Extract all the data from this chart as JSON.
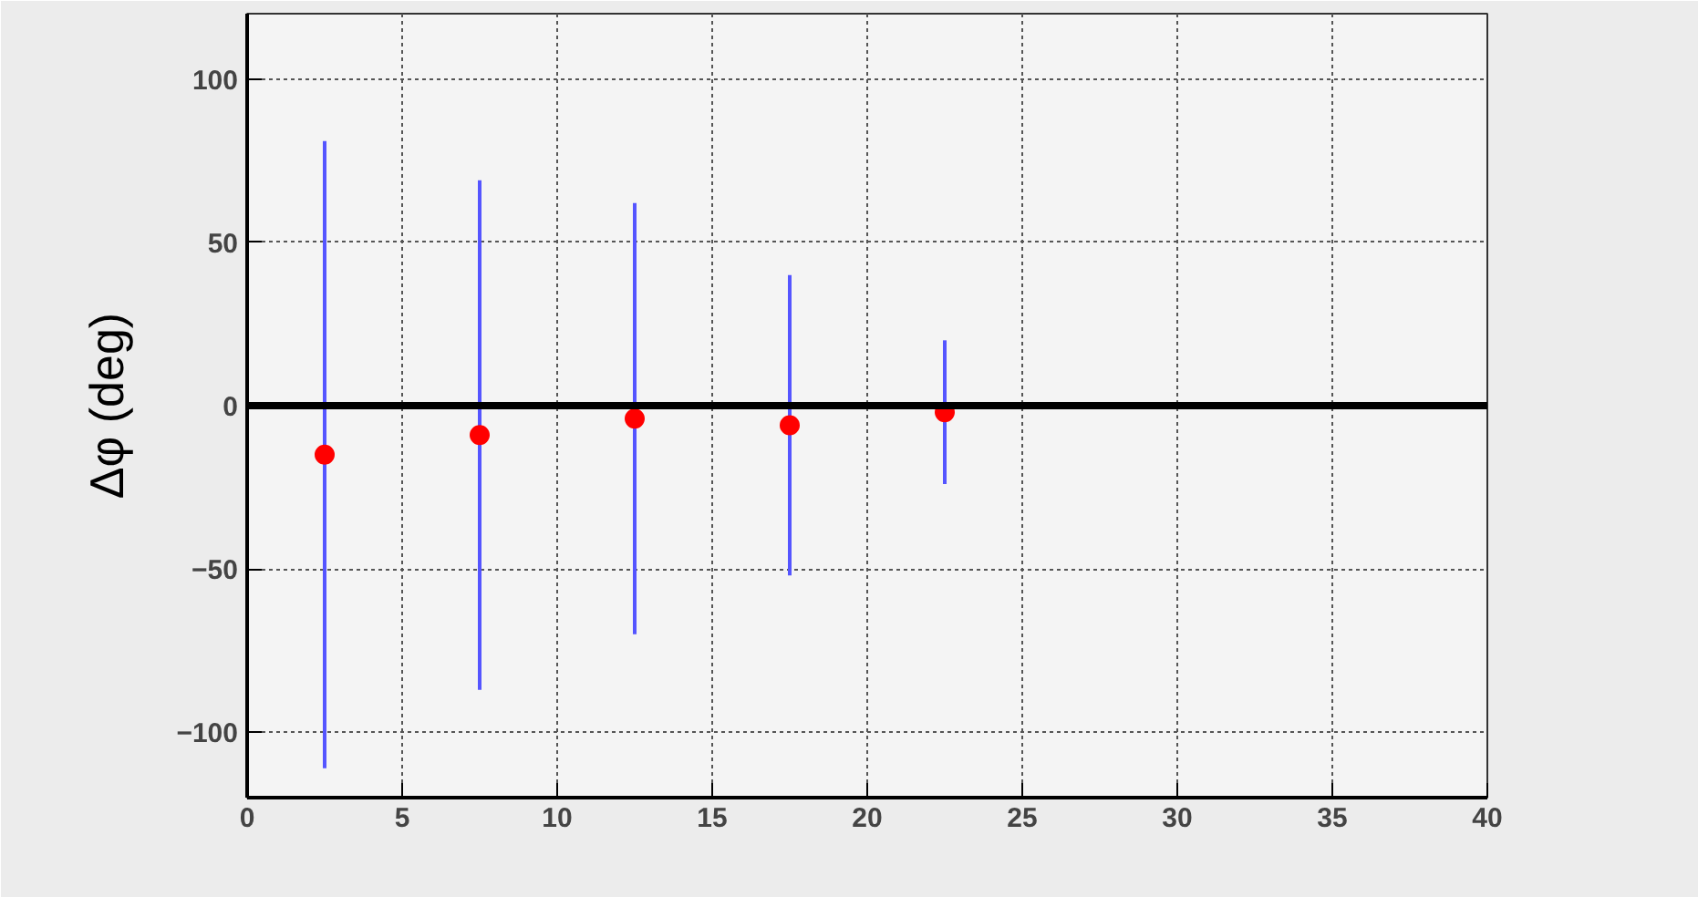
{
  "chart_data": {
    "type": "scatter",
    "ylabel": "Δφ (deg)",
    "x": [
      2.5,
      7.5,
      12.5,
      17.5,
      22.5
    ],
    "series": [
      {
        "color": "#ff0000",
        "values": [
          -15,
          -9,
          -4,
          -6,
          -2
        ],
        "errors": [
          96,
          78,
          66,
          46,
          22
        ]
      }
    ],
    "xlim": [
      0,
      40
    ],
    "xticks": [
      0,
      5,
      10,
      15,
      20,
      25,
      30,
      35,
      40
    ],
    "ylim": [
      -120,
      120
    ],
    "yticks": [
      -100,
      -50,
      0,
      50,
      100
    ],
    "ref_lines": [
      {
        "axis": "y",
        "value": 0,
        "color": "#000000"
      }
    ],
    "grid": true,
    "marker": "circle"
  }
}
